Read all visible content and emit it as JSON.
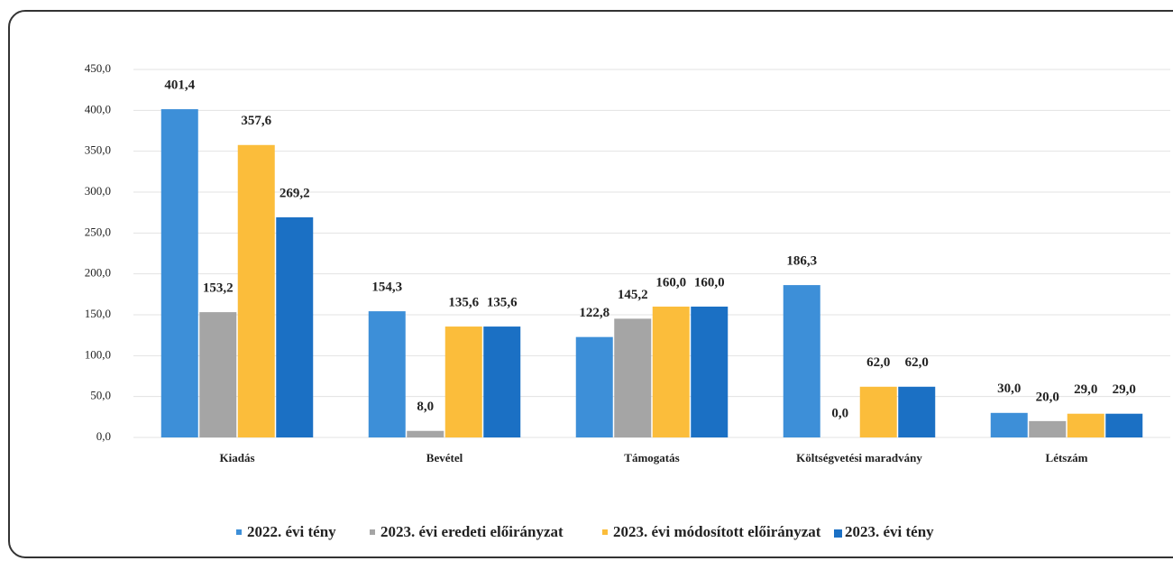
{
  "chart_data": {
    "type": "bar",
    "categories": [
      "Kiadás",
      "Bevétel",
      "Támogatás",
      "Költségvetési maradvány",
      "Létszám"
    ],
    "series": [
      {
        "name": "2022. évi tény",
        "color": "#3d8fd8",
        "values": [
          401.4,
          154.3,
          122.8,
          186.3,
          30.0
        ],
        "value_labels": [
          "401,4",
          "154,3",
          "122,8",
          "186,3",
          "30,0"
        ]
      },
      {
        "name": "2023. évi eredeti előirányzat",
        "color": "#a5a5a5",
        "values": [
          153.2,
          8.0,
          145.2,
          0.0,
          20.0
        ],
        "value_labels": [
          "153,2",
          "8,0",
          "145,2",
          "0,0",
          "20,0"
        ]
      },
      {
        "name": "2023. évi módosított előirányzat",
        "color": "#fbbd3b",
        "values": [
          357.6,
          135.6,
          160.0,
          62.0,
          29.0
        ],
        "value_labels": [
          "357,6",
          "135,6",
          "160,0",
          "62,0",
          "29,0"
        ]
      },
      {
        "name": "2023. évi tény",
        "color": "#1b70c4",
        "values": [
          269.2,
          135.6,
          160.0,
          62.0,
          29.0
        ],
        "value_labels": [
          "269,2",
          "135,6",
          "160,0",
          "62,0",
          "29,0"
        ]
      }
    ],
    "ylim": [
      0,
      450
    ],
    "yticks": [
      {
        "value": 0,
        "label": "0,0"
      },
      {
        "value": 50,
        "label": "50,0"
      },
      {
        "value": 100,
        "label": "100,0"
      },
      {
        "value": 150,
        "label": "150,0"
      },
      {
        "value": 200,
        "label": "200,0"
      },
      {
        "value": 250,
        "label": "250,0"
      },
      {
        "value": 300,
        "label": "300,0"
      },
      {
        "value": 350,
        "label": "350,0"
      },
      {
        "value": 400,
        "label": "400,0"
      },
      {
        "value": 450,
        "label": "450,0"
      }
    ],
    "grid": true,
    "legend": "bottom"
  }
}
